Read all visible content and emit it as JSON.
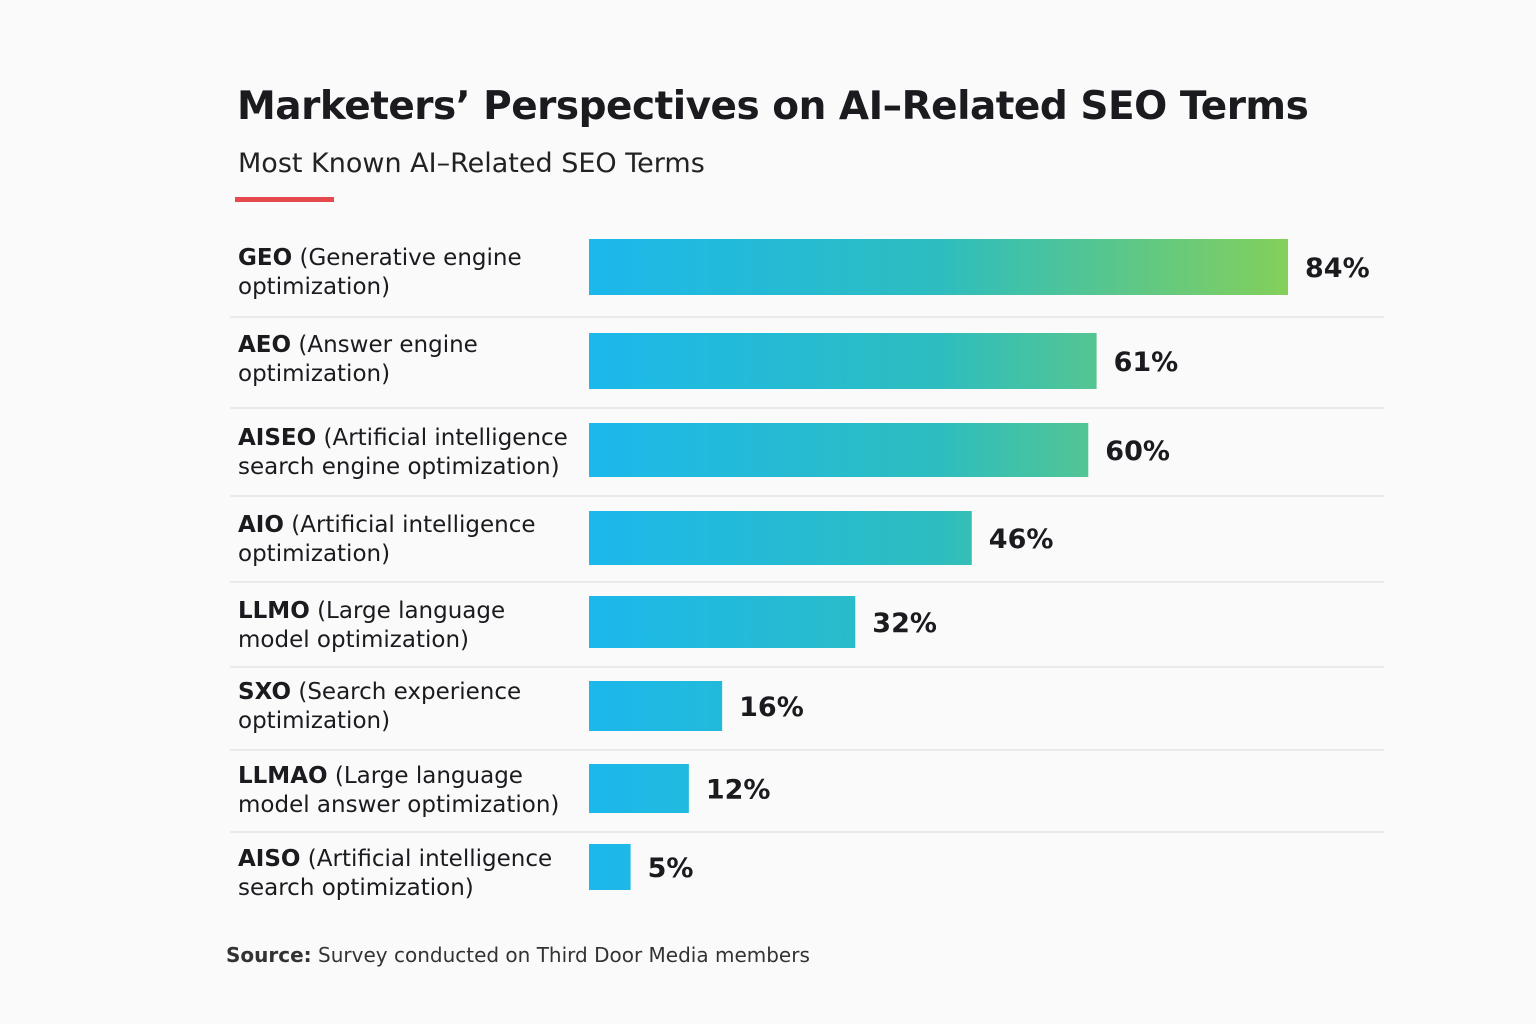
{
  "title": "Marketers’ Perspectives on AI–Related SEO Terms",
  "subtitle": "Most Known AI–Related SEO Terms",
  "colors": {
    "accent": "#e5484d",
    "bar_start": "#1cb8ec",
    "bar_mid": "#2dbdbf",
    "bar_end": "#84d05a"
  },
  "chart_data": {
    "type": "bar",
    "orientation": "horizontal",
    "categories": [
      {
        "abbr": "GEO",
        "desc": "(Generative engine",
        "desc2": "optimization)"
      },
      {
        "abbr": "AEO",
        "desc": "(Answer engine",
        "desc2": "optimization)"
      },
      {
        "abbr": "AISEO",
        "desc": "(Artificial intelligence",
        "desc2": "search engine optimization)"
      },
      {
        "abbr": "AIO",
        "desc": "(Artificial intelligence",
        "desc2": "optimization)"
      },
      {
        "abbr": "LLMO",
        "desc": "(Large language",
        "desc2": "model optimization)"
      },
      {
        "abbr": "SXO",
        "desc": "(Search experience",
        "desc2": "optimization)"
      },
      {
        "abbr": "LLMAO",
        "desc": "(Large language",
        "desc2": "model answer optimization)"
      },
      {
        "abbr": "AISO",
        "desc": "(Artificial intelligence",
        "desc2": "search optimization)"
      }
    ],
    "values": [
      84,
      61,
      60,
      46,
      32,
      16,
      12,
      5
    ],
    "data_labels": [
      "84%",
      "61%",
      "60%",
      "46%",
      "32%",
      "16%",
      "12%",
      "5%"
    ],
    "unit": "%",
    "grid": false,
    "legend": "none"
  },
  "source": {
    "label": "Source:",
    "text": "Survey conducted on Third Door Media members"
  }
}
